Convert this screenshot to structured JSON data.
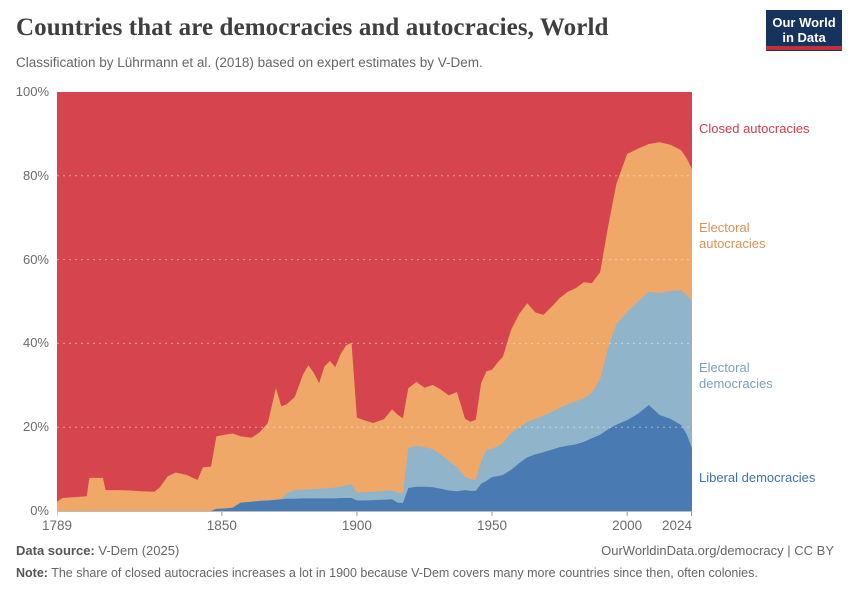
{
  "header": {
    "title": "Countries that are democracies and autocracies, World",
    "subtitle": "Classification by Lührmann et al. (2018) based on expert estimates by V-Dem."
  },
  "branding": {
    "logo_line1": "Our World",
    "logo_line2": "in Data",
    "navy": "#15335d",
    "red": "#c22f3f"
  },
  "legend": {
    "items": [
      {
        "label": "Closed autocracies",
        "color": "#cc3e4c"
      },
      {
        "label": "Electoral autocracies",
        "color": "#d79354"
      },
      {
        "label": "Electoral democracies",
        "color": "#79a3bd"
      },
      {
        "label": "Liberal democracies",
        "color": "#3d74ab"
      }
    ]
  },
  "footer": {
    "source_label": "Data source:",
    "source_value": " V-Dem (2025)",
    "credit": "OurWorldinData.org/democracy | CC BY",
    "note_label": "Note:",
    "note_value": " The share of closed autocracies increases a lot in 1900 because V-Dem covers many more countries since then, often colonies."
  },
  "chart_data": {
    "type": "area",
    "stacked": true,
    "unit": "% of countries",
    "title": "Countries that are democracies and autocracies, World",
    "x_range": [
      1789,
      2024
    ],
    "ylim": [
      0,
      100
    ],
    "grid": "dashed horizontal lines at 20/40/60/80",
    "legend_position": "right",
    "x_ticks": [
      {
        "label": "1789",
        "year": 1789
      },
      {
        "label": "1850",
        "year": 1850
      },
      {
        "label": "1900",
        "year": 1900
      },
      {
        "label": "1950",
        "year": 1950
      },
      {
        "label": "2000",
        "year": 2000
      },
      {
        "label": "2024",
        "year": 2024
      }
    ],
    "y_ticks": [
      {
        "label": "0%",
        "value": 0
      },
      {
        "label": "20%",
        "value": 20
      },
      {
        "label": "40%",
        "value": 40
      },
      {
        "label": "60%",
        "value": 60
      },
      {
        "label": "80%",
        "value": 80
      },
      {
        "label": "100%",
        "value": 100
      }
    ],
    "y_gridlines": [
      20,
      40,
      60,
      80
    ],
    "series_order": "bottom to top",
    "years": [
      1789,
      1791,
      1795,
      1800,
      1801,
      1806,
      1807,
      1812,
      1816,
      1820,
      1825,
      1827,
      1830,
      1833,
      1837,
      1841,
      1843,
      1846,
      1848,
      1851,
      1854,
      1857,
      1861,
      1864,
      1867,
      1870,
      1872,
      1874,
      1877,
      1880,
      1882,
      1884,
      1886,
      1888,
      1890,
      1892,
      1894,
      1896,
      1898,
      1900,
      1903,
      1906,
      1910,
      1913,
      1915,
      1917,
      1919,
      1922,
      1925,
      1928,
      1931,
      1934,
      1937,
      1940,
      1942,
      1944,
      1946,
      1948,
      1950,
      1952,
      1954,
      1957,
      1960,
      1963,
      1966,
      1969,
      1972,
      1975,
      1978,
      1981,
      1984,
      1987,
      1990,
      1993,
      1996,
      2000,
      2004,
      2008,
      2012,
      2016,
      2020,
      2022,
      2024
    ],
    "series": [
      {
        "name": "Liberal democracies",
        "color": "#4a7ab2",
        "values": [
          0,
          0,
          0,
          0,
          0,
          0,
          0,
          0,
          0,
          0,
          0,
          0,
          0,
          0,
          0,
          0,
          0,
          0,
          0.5,
          0.6,
          0.8,
          2,
          2.2,
          2.4,
          2.5,
          2.7,
          2.8,
          2.9,
          2.9,
          3,
          3,
          3,
          3,
          3,
          3,
          3,
          3.1,
          3.1,
          3.1,
          2.5,
          2.5,
          2.6,
          2.7,
          2.8,
          2,
          1.9,
          5.5,
          5.8,
          5.8,
          5.7,
          5.3,
          4.9,
          4.7,
          5,
          4.8,
          4.8,
          6.5,
          7.2,
          8.1,
          8.3,
          8.6,
          9.8,
          11.4,
          12.8,
          13.5,
          14,
          14.6,
          15.2,
          15.6,
          15.9,
          16.5,
          17.4,
          18.2,
          19.5,
          20.6,
          21.7,
          23.2,
          25.3,
          22.9,
          22,
          20.5,
          18.3,
          15
        ]
      },
      {
        "name": "Electoral democracies",
        "color": "#90b4ca",
        "values": [
          0,
          0,
          0,
          0,
          0,
          0,
          0,
          0,
          0,
          0,
          0,
          0,
          0,
          0,
          0,
          0,
          0,
          0,
          0,
          0,
          0,
          0,
          0,
          0,
          0,
          0,
          0,
          1.3,
          2.1,
          2.1,
          2.2,
          2.2,
          2.3,
          2.4,
          2.5,
          2.6,
          2.7,
          3.1,
          3.3,
          1.9,
          2,
          2,
          2.1,
          2.2,
          2.4,
          2.4,
          9.5,
          9.8,
          9.4,
          9.1,
          8.2,
          7,
          5.8,
          3.2,
          2.8,
          2.6,
          5.5,
          7.4,
          6.7,
          7.2,
          7.6,
          8.8,
          8.6,
          8.4,
          8.5,
          8.8,
          9,
          9.4,
          9.9,
          10.3,
          10.4,
          10.8,
          13.3,
          19.5,
          23.9,
          25.8,
          26.8,
          27,
          29.1,
          30.5,
          32.2,
          33.3,
          35
        ]
      },
      {
        "name": "Electoral autocracies",
        "color": "#f0a868",
        "values": [
          2.2,
          3.1,
          3.3,
          3.5,
          7.9,
          7.9,
          5,
          5,
          4.9,
          4.7,
          4.6,
          5.6,
          8.3,
          9.2,
          8.6,
          7.4,
          10.4,
          10.6,
          17.3,
          17.6,
          17.7,
          15.8,
          15.3,
          16.4,
          18.5,
          26.6,
          22.2,
          21.3,
          22.2,
          27.4,
          29.6,
          27.8,
          25.2,
          29.1,
          30.3,
          28.7,
          31.7,
          33.3,
          33.8,
          17.9,
          17.1,
          16.4,
          17.1,
          19.3,
          18.6,
          17.8,
          14.3,
          15.2,
          14.2,
          15.3,
          15.5,
          15.7,
          17.9,
          13.8,
          13.7,
          14.4,
          18.6,
          18.8,
          18.9,
          19.9,
          20.6,
          24.6,
          27,
          28.4,
          25.4,
          24,
          25.1,
          26.2,
          26.8,
          27,
          27.7,
          26.2,
          25.5,
          29,
          33.5,
          37.7,
          36.5,
          35.3,
          36,
          34.9,
          33.4,
          32.6,
          31.6
        ]
      },
      {
        "name": "Closed autocracies",
        "color": "#d6454e",
        "values": [
          97.8,
          96.9,
          96.7,
          96.5,
          92.1,
          92.1,
          95,
          95,
          95.1,
          95.3,
          95.4,
          94.4,
          91.7,
          90.8,
          91.4,
          92.6,
          89.6,
          89.4,
          82.2,
          81.8,
          81.5,
          82.2,
          82.5,
          81.2,
          79,
          70.7,
          75,
          74.5,
          72.8,
          67.5,
          65.2,
          67,
          69.5,
          65.5,
          64.2,
          65.7,
          62.5,
          60.5,
          59.8,
          77.7,
          78.4,
          79,
          78.1,
          75.7,
          77,
          77.9,
          70.7,
          69.2,
          70.6,
          69.9,
          71,
          72.4,
          71.6,
          78,
          78.7,
          78.2,
          69.4,
          66.6,
          66.3,
          64.6,
          63.2,
          56.8,
          53,
          50.4,
          52.6,
          53.2,
          51.3,
          49.2,
          47.7,
          46.8,
          45.4,
          45.6,
          43,
          32,
          22,
          14.8,
          13.5,
          12.4,
          12,
          12.6,
          13.9,
          15.8,
          18.4
        ]
      }
    ]
  }
}
